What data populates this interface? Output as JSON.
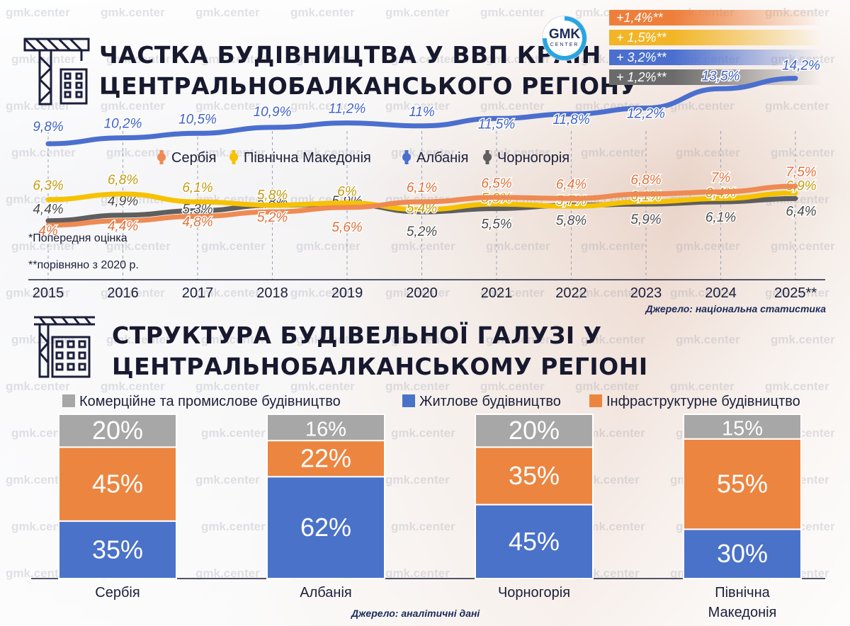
{
  "watermark": "gmk.center",
  "logo": {
    "line1": "GMK",
    "line2": "CENTER"
  },
  "line_section": {
    "title_line1": "ЧАСТКА БУДІВНИЦТВА У ВВП КРАЇН",
    "title_line2": "ЦЕНТРАЛЬНОБАЛКАНСЬКОГО РЕГІОНУ",
    "note_preliminary": "*Попередня оцінка",
    "note_compared": "**порівняно з 2020 р.",
    "source": "Джерело: національна статистика",
    "badges": [
      {
        "text": "+1,4%**",
        "color": "#ee7f3b"
      },
      {
        "text": "+ 1,5%**",
        "color": "#f2b526"
      },
      {
        "text": "+ 3,2%**",
        "color": "#4a6fcf"
      },
      {
        "text": "+ 1,2%**",
        "color": "#6b6b6b"
      }
    ]
  },
  "bar_section": {
    "title_line1": "СТРУКТУРА БУДІВЕЛЬНОЇ ГАЛУЗІ У",
    "title_line2": "ЦЕНТРАЛЬНОБАЛКАНСЬКОМУ РЕГІОНІ",
    "source": "Джерело: аналітичні дані"
  },
  "chart_data": [
    {
      "type": "line",
      "x": [
        "2015",
        "2016",
        "2017",
        "2018",
        "2019",
        "2020",
        "2021",
        "2022",
        "2023",
        "2024",
        "2025**"
      ],
      "series": [
        {
          "name": "Албанія",
          "color": "#4a6fcf",
          "label_color": "#3f63c4",
          "values": [
            9.8,
            10.2,
            10.5,
            10.9,
            11.2,
            11.0,
            11.5,
            11.8,
            12.2,
            13.5,
            14.2
          ],
          "labels": [
            "9,8%",
            "10,2%",
            "10,5%",
            "10,9%",
            "11,2%",
            "11%",
            "11,5%",
            "11,8%",
            "12,2%",
            "13,5%",
            "14,2%"
          ]
        },
        {
          "name": "Сербія",
          "color": "#ee8a52",
          "label_color": "#e0703a",
          "values": [
            4.0,
            4.4,
            4.8,
            5.2,
            5.6,
            6.1,
            6.5,
            6.4,
            6.8,
            7.0,
            7.5
          ],
          "labels": [
            "4%",
            "4,4%",
            "4,8%",
            "5,2%",
            "5,6%",
            "6,1%",
            "6,5%",
            "6,4%",
            "6,8%",
            "7%",
            "7,5%"
          ]
        },
        {
          "name": "Північна Македонія",
          "color": "#f6c200",
          "label_color": "#c59a12",
          "values": [
            6.3,
            6.8,
            6.1,
            5.8,
            6.0,
            5.4,
            5.9,
            5.7,
            6.1,
            6.4,
            6.9
          ],
          "labels": [
            "6,3%",
            "6,8%",
            "6,1%",
            "5,8%",
            "6%",
            "5,4%",
            "5,9%",
            "5,7%",
            "6,1%",
            "6,4%",
            "6,9%"
          ]
        },
        {
          "name": "Чорногорія",
          "color": "#5e5e5e",
          "label_color": "#4a4a4a",
          "values": [
            4.4,
            4.9,
            5.3,
            5.8,
            5.9,
            5.2,
            5.5,
            5.8,
            5.9,
            6.1,
            6.4
          ],
          "labels": [
            "4,4%",
            "4,9%",
            "5,3%",
            "5,8%",
            "5,9%",
            "5,2%",
            "5,5%",
            "5,8%",
            "5,9%",
            "6,1%",
            "6,4%"
          ]
        }
      ],
      "legend": [
        "Сербія",
        "Північна Македонія",
        "Албанія",
        "Чорногорія"
      ],
      "legend_position": "middle"
    },
    {
      "type": "bar",
      "stacked": true,
      "categories": [
        "Сербія",
        "Албанія",
        "Чорногорія",
        "Північна Македонія"
      ],
      "series": [
        {
          "name": "Житлове будівництво",
          "color": "#4a72c9",
          "values": [
            35,
            62,
            45,
            30
          ]
        },
        {
          "name": "Інфраструктурне будівництво",
          "color": "#ec8540",
          "values": [
            45,
            22,
            35,
            55
          ]
        },
        {
          "name": "Комерційне та промислове будівництво",
          "color": "#a7a7a7",
          "values": [
            20,
            16,
            20,
            15
          ]
        }
      ],
      "legend_order": [
        "Комерційне та промислове будівництво",
        "Житлове будівництво",
        "Інфраструктурне будівництво"
      ],
      "legend_position": "top",
      "unit": "%"
    }
  ]
}
